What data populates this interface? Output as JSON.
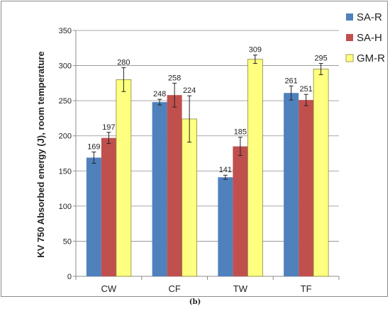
{
  "caption": "(b)",
  "chart_data": {
    "type": "bar",
    "title": "",
    "xlabel": "",
    "ylabel": "KV 750 Absorbed energy (J), room temperature",
    "ylim": [
      0,
      350
    ],
    "yticks": [
      0,
      50,
      100,
      150,
      200,
      250,
      300,
      350
    ],
    "grid": "horizontal",
    "legend_position": "top-right",
    "categories": [
      "CW",
      "CF",
      "TW",
      "TF"
    ],
    "series": [
      {
        "name": "SA-R",
        "color": "#4f81bd",
        "values": [
          169,
          248,
          141,
          261
        ],
        "errors": [
          8,
          4,
          3,
          10
        ]
      },
      {
        "name": "SA-H",
        "color": "#c0504d",
        "values": [
          197,
          258,
          185,
          251
        ],
        "errors": [
          8,
          17,
          13,
          8
        ]
      },
      {
        "name": "GM-R",
        "color": "#ffff80",
        "values": [
          280,
          224,
          309,
          295
        ],
        "errors": [
          17,
          33,
          6,
          8
        ]
      }
    ]
  }
}
